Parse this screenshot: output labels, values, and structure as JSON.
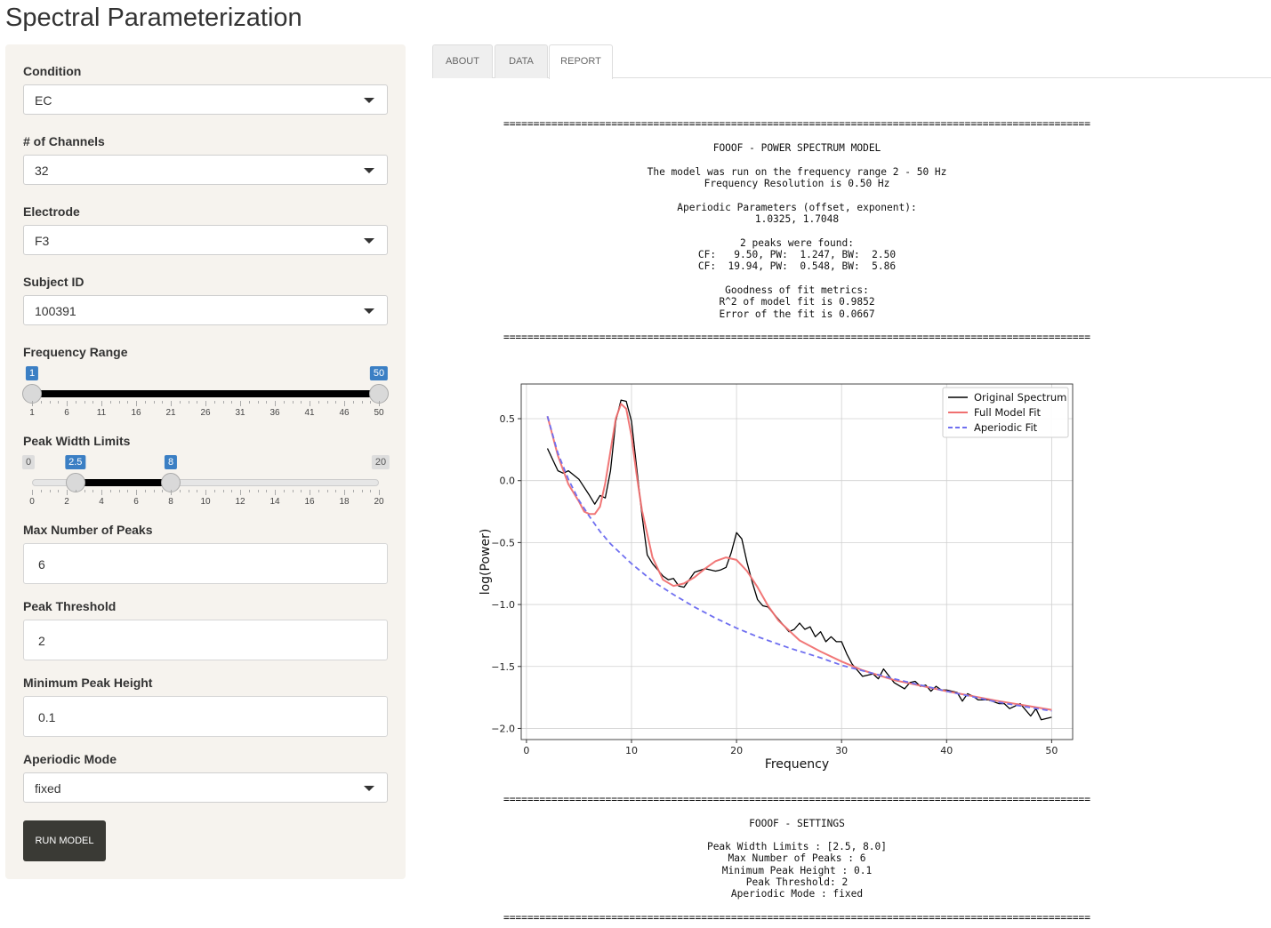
{
  "app": {
    "title": "Spectral Parameterization"
  },
  "sidebar": {
    "condition": {
      "label": "Condition",
      "value": "EC"
    },
    "channels": {
      "label": "# of Channels",
      "value": "32"
    },
    "electrode": {
      "label": "Electrode",
      "value": "F3"
    },
    "subject": {
      "label": "Subject ID",
      "value": "100391"
    },
    "freq_range": {
      "label": "Frequency Range",
      "min": 1,
      "max": 50,
      "low": 1,
      "high": 50,
      "low_label": "1",
      "high_label": "50",
      "ticks": [
        "1",
        "6",
        "11",
        "16",
        "21",
        "26",
        "31",
        "36",
        "41",
        "46",
        "50"
      ]
    },
    "peak_width": {
      "label": "Peak Width Limits",
      "min": 0,
      "max": 20,
      "low": 2.5,
      "high": 8,
      "min_label": "0",
      "max_label": "20",
      "low_label": "2.5",
      "high_label": "8",
      "ticks": [
        "0",
        "2",
        "4",
        "6",
        "8",
        "10",
        "12",
        "14",
        "16",
        "18",
        "20"
      ]
    },
    "max_peaks": {
      "label": "Max Number of Peaks",
      "value": "6"
    },
    "peak_threshold": {
      "label": "Peak Threshold",
      "value": "2"
    },
    "min_peak_height": {
      "label": "Minimum Peak Height",
      "value": "0.1"
    },
    "aperiodic_mode": {
      "label": "Aperiodic Mode",
      "value": "fixed"
    },
    "run_label": "RUN MODEL"
  },
  "tabs": [
    {
      "label": "ABOUT"
    },
    {
      "label": "DATA"
    },
    {
      "label": "REPORT",
      "active": true
    }
  ],
  "report": {
    "separator": "==================================================================================================",
    "title": "FOOOF - POWER SPECTRUM MODEL",
    "lines": [
      "The model was run on the frequency range 2 - 50 Hz",
      "Frequency Resolution is 0.50 Hz",
      "",
      "Aperiodic Parameters (offset, exponent):",
      "1.0325, 1.7048",
      "",
      "2 peaks were found:",
      "CF:   9.50, PW:  1.247, BW:  2.50",
      "CF:  19.94, PW:  0.548, BW:  5.86",
      "",
      "Goodness of fit metrics:",
      "R^2 of model fit is 0.9852",
      "Error of the fit is 0.0667"
    ],
    "settings_title": "FOOOF - SETTINGS",
    "settings_lines": [
      "Peak Width Limits : [2.5, 8.0]",
      "Max Number of Peaks : 6",
      "Minimum Peak Height : 0.1",
      "Peak Threshold: 2",
      "Aperiodic Mode : fixed"
    ]
  },
  "chart_data": {
    "type": "line",
    "xlabel": "Frequency",
    "ylabel": "log(Power)",
    "xlim": [
      -0.5,
      52
    ],
    "ylim": [
      -2.09,
      0.78
    ],
    "xticks": [
      0,
      10,
      20,
      30,
      40,
      50
    ],
    "yticks": [
      0.5,
      0.0,
      -0.5,
      -1.0,
      -1.5,
      -2.0
    ],
    "ytick_labels": [
      "0.5",
      "0.0",
      "−0.5",
      "−1.0",
      "−1.5",
      "−2.0"
    ],
    "grid": true,
    "legend_position": "top-right",
    "colors": {
      "original": "#000000",
      "model": "#f07070",
      "aperiodic": "#6f6ff0"
    },
    "series": [
      {
        "name": "Original Spectrum",
        "style": "solid",
        "x": [
          2,
          3,
          3.5,
          4,
          5,
          6,
          6.5,
          7,
          7.5,
          8,
          8.5,
          9,
          9.5,
          10,
          10.5,
          11,
          11.5,
          12,
          13,
          13.5,
          14,
          14.5,
          15,
          16,
          17,
          18,
          18.5,
          19,
          19.5,
          20,
          20.5,
          21,
          21.5,
          22,
          22.5,
          23,
          24,
          25,
          25.5,
          26,
          26.5,
          27,
          27.5,
          28,
          28.5,
          29,
          29.5,
          30,
          30.5,
          31,
          32,
          33,
          33.5,
          34,
          35,
          36,
          36.5,
          37,
          37.5,
          38,
          38.5,
          39,
          39.5,
          40,
          41,
          41.5,
          42,
          42.5,
          43,
          44,
          45,
          45.5,
          46,
          47,
          48,
          48.5,
          49,
          50
        ],
        "y": [
          0.26,
          0.08,
          0.06,
          0.08,
          0.01,
          -0.12,
          -0.19,
          -0.12,
          -0.14,
          0.08,
          0.48,
          0.65,
          0.64,
          0.48,
          0.1,
          -0.28,
          -0.6,
          -0.67,
          -0.77,
          -0.8,
          -0.79,
          -0.85,
          -0.86,
          -0.74,
          -0.71,
          -0.73,
          -0.72,
          -0.7,
          -0.58,
          -0.42,
          -0.47,
          -0.66,
          -0.82,
          -0.96,
          -1.01,
          -1.02,
          -1.12,
          -1.22,
          -1.2,
          -1.15,
          -1.2,
          -1.18,
          -1.26,
          -1.22,
          -1.3,
          -1.26,
          -1.3,
          -1.3,
          -1.4,
          -1.48,
          -1.58,
          -1.56,
          -1.6,
          -1.52,
          -1.63,
          -1.68,
          -1.63,
          -1.62,
          -1.66,
          -1.65,
          -1.7,
          -1.66,
          -1.69,
          -1.69,
          -1.71,
          -1.78,
          -1.72,
          -1.74,
          -1.77,
          -1.77,
          -1.8,
          -1.8,
          -1.84,
          -1.8,
          -1.9,
          -1.84,
          -1.93,
          -1.91
        ]
      },
      {
        "name": "Full Model Fit",
        "style": "solid",
        "x": [
          2,
          3,
          4,
          5,
          5.5,
          6,
          6.5,
          7,
          7.5,
          8,
          8.5,
          9,
          9.5,
          10,
          10.5,
          11,
          12,
          13,
          14,
          15,
          16,
          17,
          18,
          19,
          20,
          21,
          22,
          23,
          24,
          26,
          28,
          30,
          32,
          35,
          40,
          45,
          50
        ],
        "y": [
          0.52,
          0.2,
          -0.03,
          -0.17,
          -0.25,
          -0.27,
          -0.27,
          -0.21,
          -0.02,
          0.24,
          0.5,
          0.62,
          0.58,
          0.36,
          0.04,
          -0.24,
          -0.62,
          -0.8,
          -0.85,
          -0.83,
          -0.78,
          -0.71,
          -0.65,
          -0.62,
          -0.64,
          -0.73,
          -0.86,
          -1.01,
          -1.13,
          -1.29,
          -1.38,
          -1.46,
          -1.53,
          -1.61,
          -1.7,
          -1.78,
          -1.85
        ]
      },
      {
        "name": "Aperiodic Fit",
        "style": "dashed",
        "x": [
          2,
          3,
          4,
          5,
          6,
          7,
          8,
          10,
          12,
          14,
          16,
          18,
          20,
          22,
          25,
          28,
          30,
          35,
          40,
          45,
          50
        ],
        "y": [
          0.52,
          0.22,
          0.01,
          -0.16,
          -0.29,
          -0.41,
          -0.51,
          -0.67,
          -0.81,
          -0.92,
          -1.02,
          -1.11,
          -1.19,
          -1.26,
          -1.35,
          -1.43,
          -1.49,
          -1.6,
          -1.7,
          -1.79,
          -1.86
        ]
      }
    ]
  }
}
